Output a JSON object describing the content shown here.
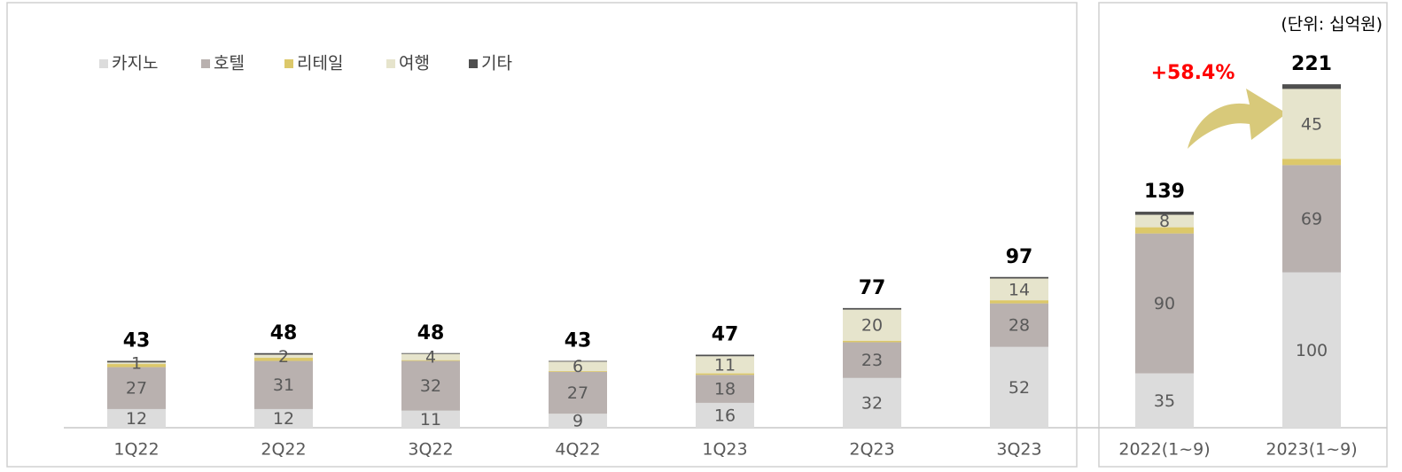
{
  "chart_data": [
    {
      "type": "bar",
      "stacked": true,
      "categories": [
        "1Q22",
        "2Q22",
        "3Q22",
        "4Q22",
        "1Q23",
        "2Q23",
        "3Q23"
      ],
      "series": [
        {
          "name": "카지노",
          "color": "#dcdcdc",
          "labels": true,
          "values": [
            12,
            12,
            11,
            9,
            16,
            32,
            52
          ]
        },
        {
          "name": "호텔",
          "color": "#b9b1af",
          "labels": true,
          "values": [
            27,
            31,
            32,
            27,
            18,
            23,
            28
          ]
        },
        {
          "name": "리테일",
          "color": "#dcc86a",
          "labels": false,
          "values": [
            2,
            2,
            0.5,
            0.5,
            1,
            1,
            2
          ]
        },
        {
          "name": "여행",
          "color": "#e6e4cc",
          "labels": true,
          "values": [
            1,
            2,
            4,
            6,
            11,
            20,
            14
          ]
        },
        {
          "name": "기타",
          "color": "#4f4f4f",
          "labels": false,
          "values": [
            1,
            1,
            0.5,
            0.5,
            1,
            1,
            1
          ]
        }
      ],
      "totals": [
        43,
        48,
        48,
        43,
        47,
        77,
        97
      ],
      "legend": true
    },
    {
      "type": "bar",
      "stacked": true,
      "categories": [
        "2022(1~9)",
        "2023(1~9)"
      ],
      "series": [
        {
          "name": "카지노",
          "color": "#dcdcdc",
          "labels": true,
          "values": [
            35,
            100
          ]
        },
        {
          "name": "호텔",
          "color": "#b9b1af",
          "labels": true,
          "values": [
            90,
            69
          ]
        },
        {
          "name": "리테일",
          "color": "#dcc86a",
          "labels": false,
          "values": [
            4,
            4
          ]
        },
        {
          "name": "여행",
          "color": "#e6e4cc",
          "labels": true,
          "values": [
            8,
            45
          ]
        },
        {
          "name": "기타",
          "color": "#4f4f4f",
          "labels": false,
          "values": [
            2,
            3
          ]
        }
      ],
      "totals": [
        139,
        221
      ],
      "note": "(단위: 십억원)",
      "annotation": "+58.4%",
      "legend": false
    }
  ]
}
